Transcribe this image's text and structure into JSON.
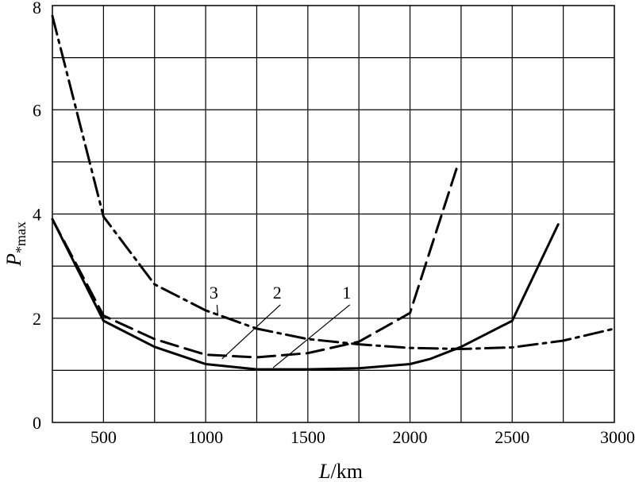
{
  "chart_data": {
    "type": "line",
    "xlabel_var": "L",
    "xlabel_unit": "/km",
    "ylabel_var": "P",
    "ylabel_sub": "*max",
    "xlim": [
      250,
      3000
    ],
    "ylim": [
      0,
      8
    ],
    "x_ticks": [
      500,
      1000,
      1500,
      2000,
      2500,
      3000
    ],
    "y_ticks": [
      0,
      2,
      4,
      6,
      8
    ],
    "grid": true,
    "series": [
      {
        "name": "1",
        "style": "solid",
        "x": [
          250,
          500,
          750,
          1000,
          1250,
          1500,
          1750,
          2000,
          2100,
          2250,
          2500,
          2725
        ],
        "y": [
          3.9,
          1.95,
          1.45,
          1.12,
          1.02,
          1.02,
          1.04,
          1.12,
          1.22,
          1.45,
          1.95,
          3.8
        ]
      },
      {
        "name": "2",
        "style": "dashed",
        "x": [
          250,
          500,
          750,
          1000,
          1250,
          1500,
          1750,
          2000,
          2230
        ],
        "y": [
          3.9,
          2.05,
          1.6,
          1.3,
          1.25,
          1.33,
          1.55,
          2.1,
          4.9
        ]
      },
      {
        "name": "3",
        "style": "dashdot",
        "x": [
          250,
          500,
          750,
          1000,
          1250,
          1500,
          1750,
          2000,
          2250,
          2500,
          2750,
          3000
        ],
        "y": [
          7.8,
          3.95,
          2.65,
          2.15,
          1.8,
          1.6,
          1.5,
          1.43,
          1.41,
          1.44,
          1.57,
          1.8
        ]
      }
    ],
    "curve_labels": [
      {
        "text": "3",
        "x": 1040,
        "y": 2.35,
        "tx": 1060,
        "ty": 2.05
      },
      {
        "text": "2",
        "x": 1350,
        "y": 2.35,
        "tx": 1080,
        "ty": 1.22
      },
      {
        "text": "1",
        "x": 1690,
        "y": 2.35,
        "tx": 1330,
        "ty": 1.05
      }
    ]
  }
}
